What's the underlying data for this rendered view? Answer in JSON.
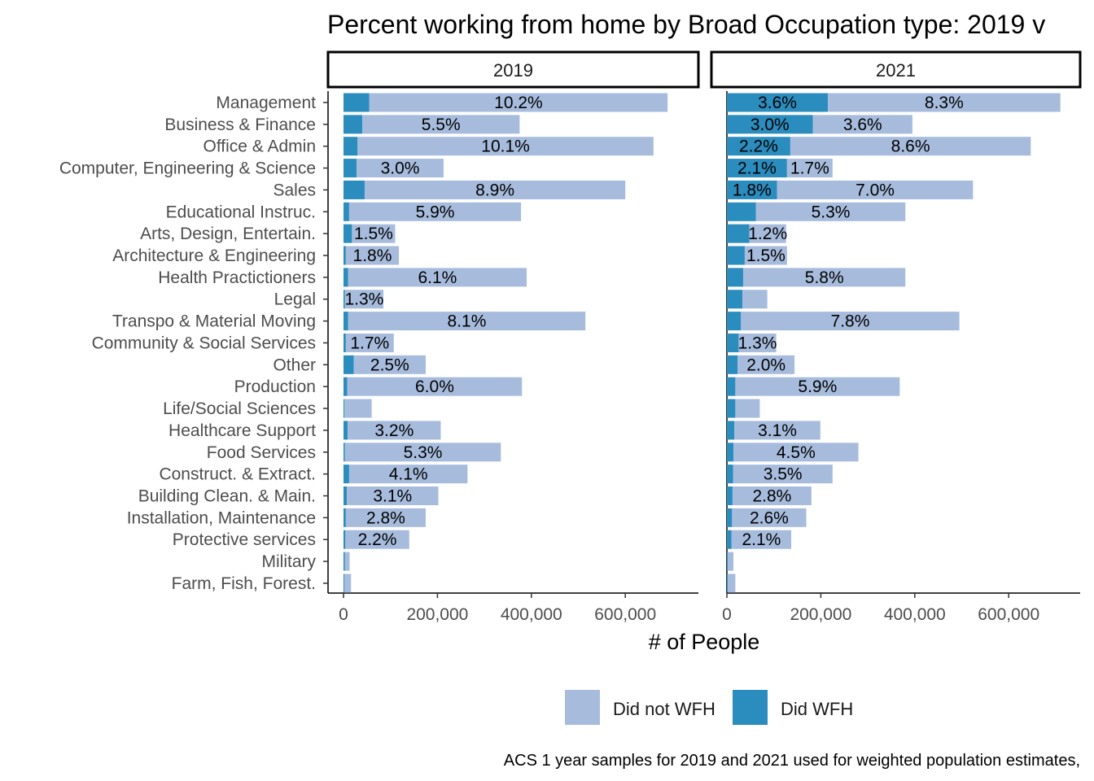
{
  "chart_data": {
    "type": "bar",
    "orientation": "horizontal",
    "stacked": true,
    "title": "Percent working from home by Broad Occupation type: 2019 v",
    "xlabel": "# of People",
    "ylabel": "",
    "xlim": [
      0,
      740000
    ],
    "xticks": [
      0,
      200000,
      400000,
      600000
    ],
    "xtick_labels": [
      "0",
      "200,000",
      "400,000",
      "600,000"
    ],
    "facets": [
      "2019",
      "2021"
    ],
    "legend": {
      "position": "bottom",
      "entries": [
        {
          "name": "Did not WFH",
          "color": "#a7bcdd"
        },
        {
          "name": "Did WFH",
          "color": "#2b8cbe"
        }
      ]
    },
    "caption": "ACS 1 year samples for 2019 and 2021 used for weighted population estimates,",
    "categories": [
      "Management",
      "Business & Finance",
      "Office & Admin",
      "Computer, Engineering & Science",
      "Sales",
      "Educational Instruc.",
      "Arts, Design, Entertain.",
      "Architecture & Engineering",
      "Health Practictioners",
      "Legal",
      "Transpo & Material Moving",
      "Community & Social Services",
      "Other",
      "Production",
      "Life/Social Sciences",
      "Healthcare Support",
      "Food Services",
      "Construct. & Extract.",
      "Building Clean. & Main.",
      "Installation, Maintenance",
      "Protective services",
      "Military",
      "Farm, Fish, Forest."
    ],
    "panels": [
      {
        "name": "2019",
        "series": [
          {
            "name": "Did WFH",
            "values": [
              55000,
              40000,
              30000,
              28000,
              45000,
              12000,
              18000,
              5000,
              10000,
              3000,
              10000,
              5000,
              22000,
              8000,
              2000,
              9000,
              3000,
              12000,
              7000,
              5000,
              4000,
              3000,
              2000
            ]
          },
          {
            "name": "Did not WFH",
            "values": [
              635000,
              335000,
              630000,
              185000,
              555000,
              366000,
              92000,
              113000,
              380000,
              82000,
              505000,
              102000,
              153000,
              372000,
              58000,
              198000,
              332000,
              252000,
              195000,
              170000,
              136000,
              10000,
              14000
            ]
          }
        ],
        "labels": [
          "10.2%",
          "5.5%",
          "10.1%",
          "3.0%",
          "8.9%",
          "5.9%",
          "1.5%",
          "1.8%",
          "6.1%",
          "1.3%",
          "8.1%",
          "1.7%",
          "2.5%",
          "6.0%",
          "",
          "3.2%",
          "5.3%",
          "4.1%",
          "3.1%",
          "2.8%",
          "2.2%",
          "",
          ""
        ]
      },
      {
        "name": "2021",
        "series": [
          {
            "name": "Did WFH",
            "values": [
              215000,
              183000,
              135000,
              128000,
              107000,
              62000,
              48000,
              38000,
              35000,
              33000,
              30000,
              25000,
              23000,
              18000,
              18000,
              16000,
              14000,
              13000,
              12000,
              11000,
              10000,
              2000,
              2000
            ]
          },
          {
            "name": "Did not WFH",
            "values": [
              495000,
              212000,
              512000,
              97000,
              417000,
              318000,
              78000,
              90000,
              345000,
              53000,
              465000,
              80000,
              121000,
              350000,
              52000,
              183000,
              266000,
              212000,
              168000,
              158000,
              127000,
              12000,
              16000
            ]
          }
        ],
        "labels": [
          "3.6%|8.3%",
          "3.0%|3.6%",
          "2.2%|8.6%",
          "2.1%|1.7%",
          "1.8%|7.0%",
          "|5.3%",
          "|1.2%",
          "|1.5%",
          "|5.8%",
          "|",
          "|7.8%",
          "|1.3%",
          "|2.0%",
          "|5.9%",
          "|",
          "|3.1%",
          "|4.5%",
          "|3.5%",
          "|2.8%",
          "|2.6%",
          "|2.1%",
          "|",
          "|"
        ]
      }
    ]
  }
}
